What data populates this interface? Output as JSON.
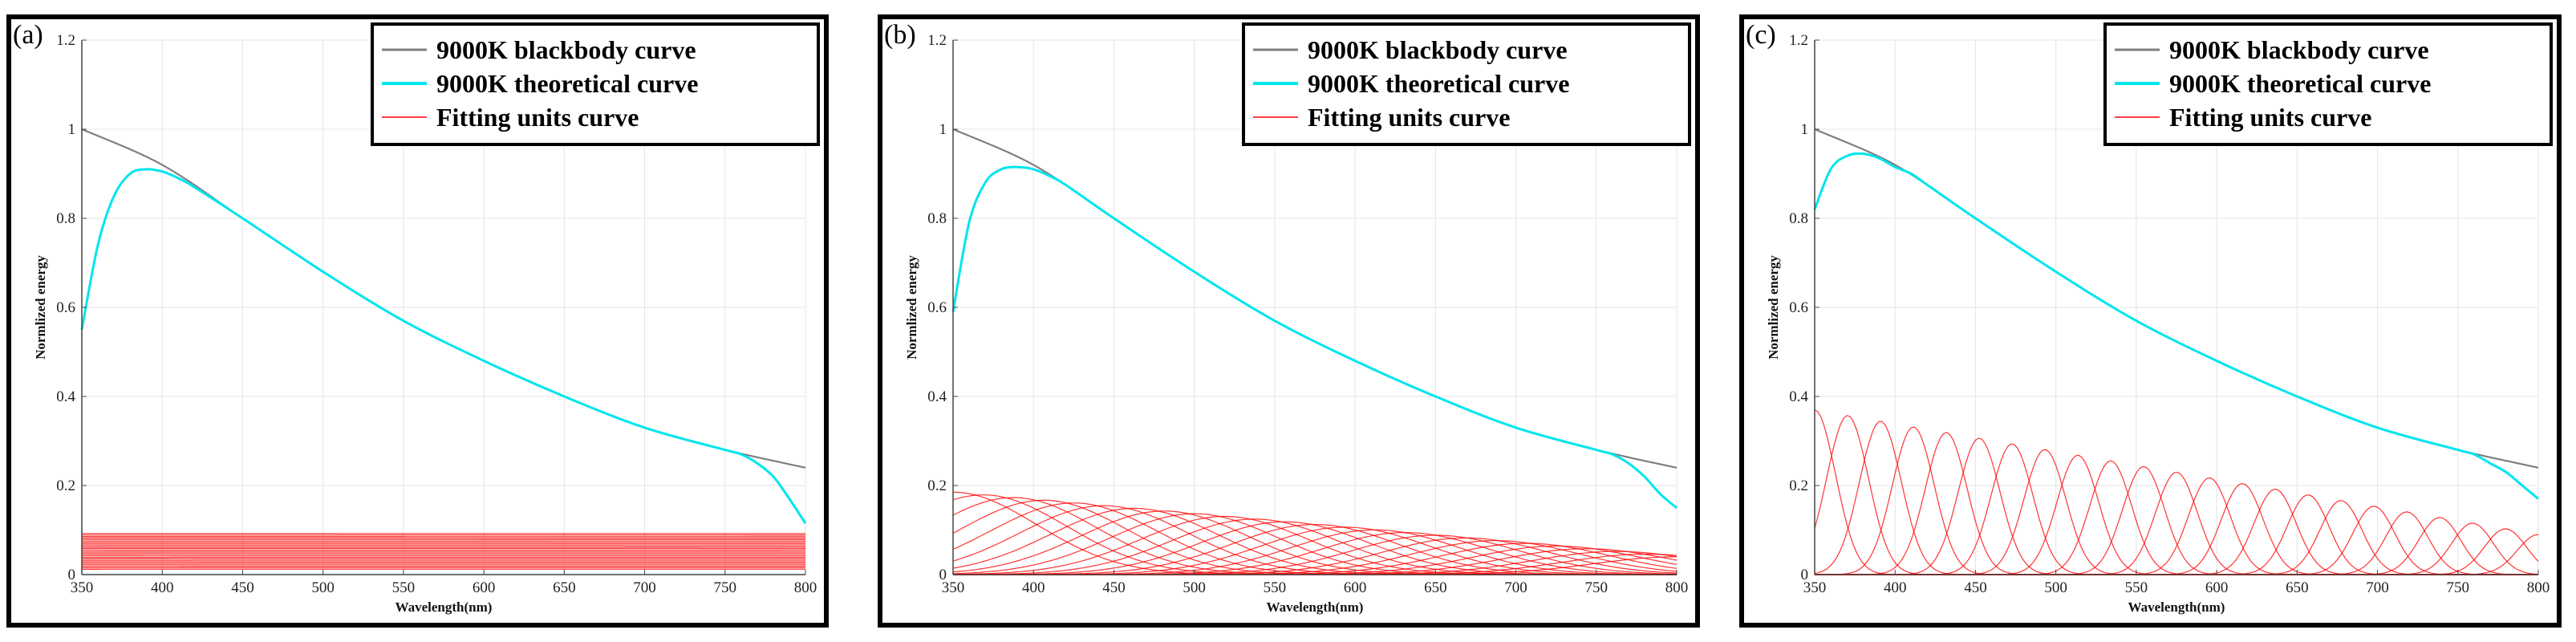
{
  "colors": {
    "blackbody": "#7f7f7f",
    "theoretical": "#00e5ee",
    "fitting": "#ff0000",
    "grid": "#e4e4e4"
  },
  "chart_data": [
    {
      "type": "line",
      "panel_label": "(a)",
      "units_count": 25,
      "unit_peak": 0.092,
      "unit_peak_end": 0.012,
      "unit_width_nm": 8000,
      "xlabel": "Wavelength(nm)",
      "ylabel": "Normlized energy",
      "xlim": [
        350,
        800
      ],
      "ylim": [
        0,
        1.2
      ],
      "xticks": [
        350,
        400,
        450,
        500,
        550,
        600,
        650,
        700,
        750,
        800
      ],
      "yticks": [
        0,
        0.2,
        0.4,
        0.6,
        0.8,
        1,
        1.2
      ],
      "legend": {
        "position": "top-right",
        "entries": [
          "9000K blackbody curve",
          "9000K theoretical curve",
          "Fitting units curve"
        ]
      },
      "series": [
        {
          "name": "9000K blackbody curve",
          "x": [
            350,
            400,
            450,
            500,
            550,
            600,
            650,
            700,
            750,
            800
          ],
          "values": [
            1.0,
            0.92,
            0.8,
            0.68,
            0.57,
            0.48,
            0.4,
            0.33,
            0.28,
            0.24
          ]
        },
        {
          "name": "9000K theoretical curve",
          "x": [
            350,
            360,
            370,
            380,
            390,
            400,
            410,
            420,
            450,
            500,
            550,
            600,
            650,
            700,
            750,
            760,
            770,
            780,
            790,
            800
          ],
          "values": [
            0.55,
            0.74,
            0.85,
            0.9,
            0.91,
            0.905,
            0.89,
            0.87,
            0.8,
            0.68,
            0.57,
            0.48,
            0.4,
            0.33,
            0.28,
            0.27,
            0.25,
            0.22,
            0.17,
            0.115
          ]
        }
      ]
    },
    {
      "type": "line",
      "panel_label": "(b)",
      "units_count": 25,
      "unit_peak": 0.185,
      "unit_peak_end": 0.04,
      "unit_width_nm": 52,
      "xlabel": "Wavelength(nm)",
      "ylabel": "Normlized energy",
      "xlim": [
        350,
        800
      ],
      "ylim": [
        0,
        1.2
      ],
      "xticks": [
        350,
        400,
        450,
        500,
        550,
        600,
        650,
        700,
        750,
        800
      ],
      "yticks": [
        0,
        0.2,
        0.4,
        0.6,
        0.8,
        1,
        1.2
      ],
      "legend": {
        "position": "top-right",
        "entries": [
          "9000K blackbody curve",
          "9000K theoretical curve",
          "Fitting units curve"
        ]
      },
      "series": [
        {
          "name": "9000K blackbody curve",
          "x": [
            350,
            400,
            450,
            500,
            550,
            600,
            650,
            700,
            750,
            800
          ],
          "values": [
            1.0,
            0.92,
            0.8,
            0.68,
            0.57,
            0.48,
            0.4,
            0.33,
            0.28,
            0.24
          ]
        },
        {
          "name": "9000K theoretical curve",
          "x": [
            350,
            360,
            370,
            380,
            390,
            400,
            410,
            420,
            450,
            500,
            550,
            600,
            650,
            700,
            750,
            760,
            770,
            780,
            790,
            800
          ],
          "values": [
            0.59,
            0.79,
            0.88,
            0.91,
            0.915,
            0.91,
            0.895,
            0.875,
            0.8,
            0.68,
            0.57,
            0.48,
            0.4,
            0.33,
            0.28,
            0.27,
            0.25,
            0.22,
            0.18,
            0.15
          ]
        }
      ]
    },
    {
      "type": "line",
      "panel_label": "(c)",
      "units_count": 23,
      "unit_peak": 0.37,
      "unit_peak_end": 0.09,
      "unit_width_nm": 13,
      "xlabel": "Wavelength(nm)",
      "ylabel": "Normlized energy",
      "xlim": [
        350,
        800
      ],
      "ylim": [
        0,
        1.2
      ],
      "xticks": [
        350,
        400,
        450,
        500,
        550,
        600,
        650,
        700,
        750,
        800
      ],
      "yticks": [
        0,
        0.2,
        0.4,
        0.6,
        0.8,
        1,
        1.2
      ],
      "legend": {
        "position": "top-right",
        "entries": [
          "9000K blackbody curve",
          "9000K theoretical curve",
          "Fitting units curve"
        ]
      },
      "series": [
        {
          "name": "9000K blackbody curve",
          "x": [
            350,
            400,
            450,
            500,
            550,
            600,
            650,
            700,
            750,
            800
          ],
          "values": [
            1.0,
            0.92,
            0.8,
            0.68,
            0.57,
            0.48,
            0.4,
            0.33,
            0.28,
            0.24
          ]
        },
        {
          "name": "9000K theoretical curve",
          "x": [
            350,
            360,
            370,
            380,
            390,
            400,
            410,
            420,
            450,
            500,
            550,
            600,
            650,
            700,
            750,
            760,
            770,
            780,
            790,
            800
          ],
          "values": [
            0.82,
            0.91,
            0.94,
            0.945,
            0.935,
            0.915,
            0.9,
            0.875,
            0.8,
            0.68,
            0.57,
            0.48,
            0.4,
            0.33,
            0.28,
            0.27,
            0.25,
            0.23,
            0.2,
            0.17
          ]
        }
      ]
    }
  ]
}
